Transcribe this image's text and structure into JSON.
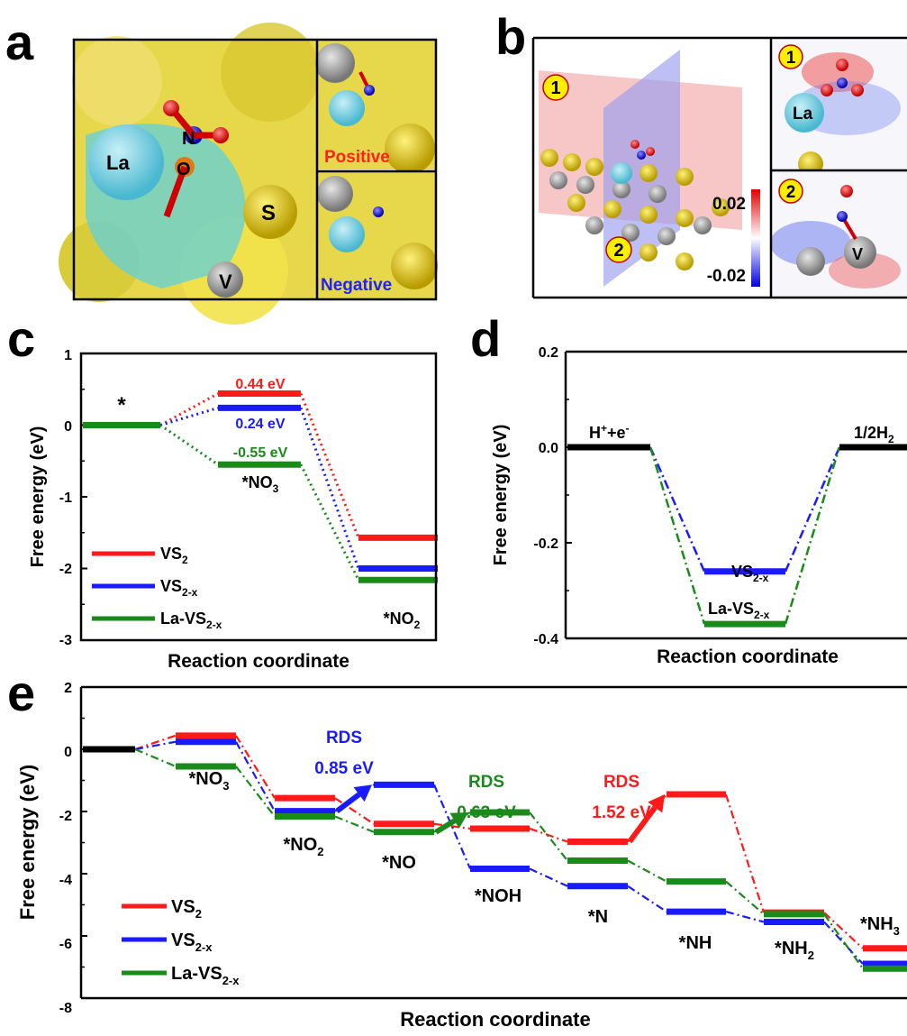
{
  "colors": {
    "vs2": "#ff1a1a",
    "vs2x": "#1a1aff",
    "lavs2x": "#1a8a1a",
    "black": "#000000",
    "yellow": "#e8d200",
    "cyan": "#6fd6e6",
    "grey": "#9a9a9a"
  },
  "panels": {
    "a": {
      "letter": "a",
      "labels": {
        "la": "La",
        "n": "N",
        "o": "O",
        "s": "S",
        "v": "V"
      },
      "positive": "Positive",
      "negative": "Negative"
    },
    "b": {
      "letter": "b",
      "plane1": "1",
      "plane2": "2",
      "scale_max": "0.02",
      "scale_min": "-0.02",
      "inset_la": "La",
      "inset_v": "V"
    }
  },
  "chart_data": [
    {
      "id": "c",
      "type": "line",
      "letter": "c",
      "xlabel": "Reaction coordinate",
      "ylabel": "Free energy (eV)",
      "ylim": [
        -3,
        1
      ],
      "yticks": [
        "1",
        "0",
        "-1",
        "-2",
        "-3"
      ],
      "series": [
        {
          "name": "VS2",
          "legend_main": "VS",
          "legend_sub": "2",
          "color_key": "vs2",
          "values": [
            0,
            0.44,
            -1.57
          ]
        },
        {
          "name": "VS2-x",
          "legend_main": "VS",
          "legend_sub": "2-x",
          "color_key": "vs2x",
          "values": [
            0,
            0.24,
            -2.0
          ]
        },
        {
          "name": "La-VS2-x",
          "legend_main": "La-VS",
          "legend_sub": "2-x",
          "color_key": "lavs2x",
          "values": [
            0,
            -0.55,
            -2.16
          ]
        }
      ],
      "annotations": {
        "star": "*",
        "vs2": "0.44 eV",
        "vs2x": "0.24 eV",
        "lavs2x": "-0.55 eV",
        "no3_main": "*NO",
        "no3_sub": "3",
        "no2_main": "*NO",
        "no2_sub": "2"
      }
    },
    {
      "id": "d",
      "type": "line",
      "letter": "d",
      "xlabel": "Reaction coordinate",
      "ylabel": "Free energy (eV)",
      "ylim": [
        -0.4,
        0.2
      ],
      "yticks": [
        "0.2",
        "0.0",
        "-0.2",
        "-0.4"
      ],
      "series": [
        {
          "name": "VS2-x",
          "label_main": "VS",
          "label_sub": "2-x",
          "color_key": "vs2x",
          "values": [
            0,
            -0.26,
            0
          ]
        },
        {
          "name": "La-VS2-x",
          "label_main": "La-VS",
          "label_sub": "2-x",
          "color_key": "lavs2x",
          "values": [
            0,
            -0.37,
            0
          ]
        }
      ],
      "annotations": {
        "left_main": "H",
        "left_sup1": "+",
        "left_mid": "+e",
        "left_sup2": "-",
        "right_main": "1/2H",
        "right_sub": "2"
      }
    },
    {
      "id": "e",
      "type": "line",
      "letter": "e",
      "xlabel": "Reaction coordinate",
      "ylabel": "Free energy (eV)",
      "ylim": [
        -8,
        2
      ],
      "yticks": [
        "2",
        "0",
        "-2",
        "-4",
        "-6",
        "-8"
      ],
      "series": [
        {
          "name": "VS2",
          "legend_main": "VS",
          "legend_sub": "2",
          "color_key": "vs2",
          "values": [
            0,
            0.44,
            -1.57,
            -2.4,
            -2.55,
            -2.97,
            -1.45,
            -5.25,
            -6.4
          ]
        },
        {
          "name": "VS2-x",
          "legend_main": "VS",
          "legend_sub": "2-x",
          "color_key": "vs2x",
          "values": [
            0,
            0.24,
            -1.99,
            -1.14,
            -3.84,
            -4.4,
            -5.22,
            -5.55,
            -6.9
          ]
        },
        {
          "name": "La-VS2-x",
          "legend_main": "La-VS",
          "legend_sub": "2-x",
          "color_key": "lavs2x",
          "values": [
            0,
            -0.55,
            -2.16,
            -2.66,
            -2.03,
            -3.58,
            -4.25,
            -5.3,
            -7.05
          ]
        }
      ],
      "step_labels": [
        {
          "main": "*NO",
          "sub": "3"
        },
        {
          "main": "*NO",
          "sub": "2"
        },
        {
          "main": "*NO",
          "sub": ""
        },
        {
          "main": "*NOH",
          "sub": ""
        },
        {
          "main": "*N",
          "sub": ""
        },
        {
          "main": "*NH",
          "sub": ""
        },
        {
          "main": "*NH",
          "sub": "2"
        },
        {
          "main": "*NH",
          "sub": "3"
        }
      ],
      "rds": [
        {
          "label": "RDS",
          "value": "0.85 eV",
          "color_key": "vs2x"
        },
        {
          "label": "RDS",
          "value": "0.63 eV",
          "color_key": "lavs2x"
        },
        {
          "label": "RDS",
          "value": "1.52 eV",
          "color_key": "vs2"
        }
      ]
    }
  ]
}
